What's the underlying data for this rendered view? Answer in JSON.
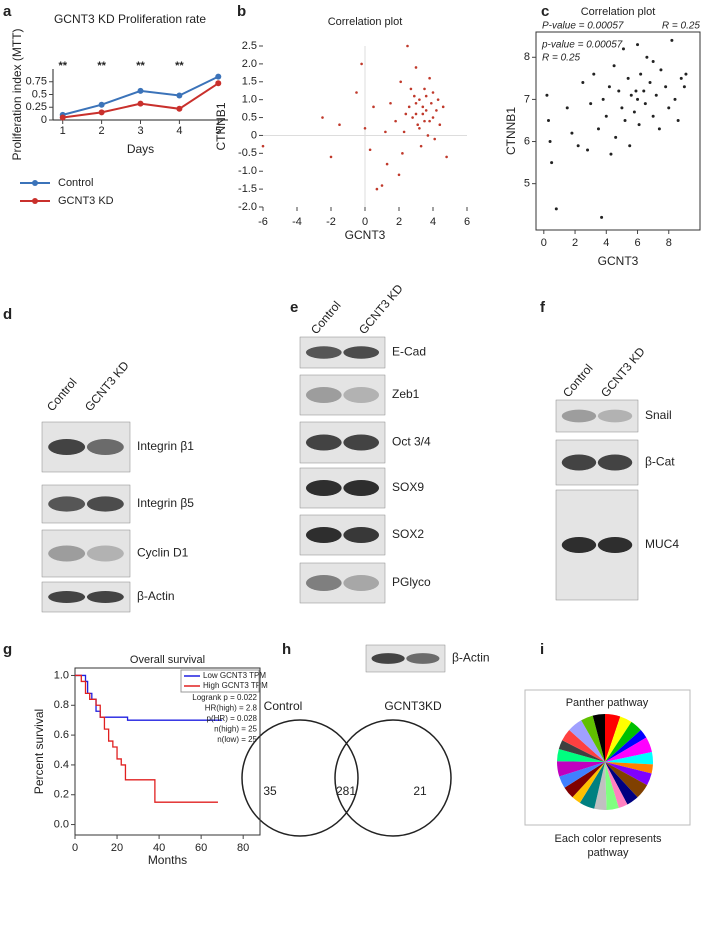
{
  "panel_letters": [
    "a",
    "b",
    "c",
    "d",
    "e",
    "f",
    "g",
    "h",
    "i"
  ],
  "chart_data": [
    {
      "type": "line",
      "title": "GCNT3 KD Proliferation rate",
      "x_label": "Days",
      "y_label": "Proliferation index (MTT)",
      "x": [
        1,
        2,
        3,
        4,
        5
      ],
      "xlim": [
        0.75,
        5.25
      ],
      "xticks": [
        1,
        2,
        3,
        4,
        5
      ],
      "ylim": [
        0,
        1
      ],
      "yticks": [
        0,
        0.25,
        0.5,
        0.75
      ],
      "significance": [
        "**",
        "**",
        "**",
        "**",
        null
      ],
      "series": [
        {
          "name": "Control",
          "color": "#3b73b9",
          "values": [
            0.1,
            0.3,
            0.57,
            0.48,
            0.85
          ]
        },
        {
          "name": "GCNT3 KD",
          "color": "#c9302c",
          "values": [
            0.05,
            0.15,
            0.32,
            0.22,
            0.72
          ]
        }
      ]
    },
    {
      "type": "scatter",
      "title": "Correlation plot",
      "x_label": "GCNT3",
      "y_label": "CTNNB1",
      "color": "#c0392b",
      "xlim": [
        -6,
        6
      ],
      "xticks": [
        -6,
        -4,
        -2,
        0,
        2,
        4,
        6
      ],
      "ylim": [
        -2,
        2.5
      ],
      "yticks": [
        {
          "value": -2,
          "label": "-2.0"
        },
        -1.5,
        {
          "value": -1,
          "label": "-1.0"
        },
        -0.5,
        0,
        0.5,
        {
          "value": 1,
          "label": "1.0"
        },
        1.5,
        {
          "value": 2,
          "label": "2.0"
        },
        2.5
      ],
      "x": [
        -6,
        -2.5,
        -2,
        -1.5,
        -0.5,
        -0.2,
        0,
        0.3,
        0.7,
        1,
        1.3,
        1.5,
        1.8,
        2,
        2.1,
        2.3,
        2.5,
        2.6,
        2.8,
        2.9,
        3,
        3,
        3.1,
        3.2,
        3.3,
        3.4,
        3.5,
        3.5,
        3.6,
        3.7,
        3.8,
        3.9,
        4,
        4,
        4.1,
        4.2,
        4.4,
        4.6,
        4.8,
        2.7,
        3.2,
        3.6,
        2.4,
        3.0,
        3.8,
        1.2,
        0.5,
        2.2,
        4.3,
        3.4
      ],
      "values": [
        -0.3,
        0.5,
        -0.6,
        0.3,
        1.2,
        2.0,
        0.2,
        -0.4,
        -1.5,
        -1.4,
        -0.8,
        0.9,
        0.4,
        -1.1,
        1.5,
        0.1,
        2.5,
        0.8,
        0.5,
        1.1,
        1.9,
        0.6,
        0.3,
        1.0,
        -0.3,
        0.8,
        0.4,
        1.3,
        0.7,
        0.0,
        1.6,
        0.9,
        0.5,
        1.2,
        -0.1,
        0.7,
        0.3,
        0.8,
        -0.6,
        1.3,
        0.2,
        1.1,
        0.6,
        0.9,
        0.4,
        0.1,
        0.8,
        -0.5,
        1.0,
        0.6
      ]
    },
    {
      "type": "scatter",
      "title": "Correlation plot",
      "x_label": "GCNT3",
      "y_label": "CTNNB1",
      "color": "#222222",
      "annotations": [
        "P-value = 0.00057",
        "R = 0.25",
        "p-value = 0.00057",
        "R = 0.25"
      ],
      "xlim": [
        -0.5,
        10
      ],
      "xticks": [
        0,
        2,
        4,
        6,
        8
      ],
      "ylim": [
        3.9,
        8.6
      ],
      "yticks": [
        5,
        6,
        7,
        8
      ],
      "x": [
        0.2,
        0.3,
        0.4,
        0.5,
        0.8,
        1.5,
        1.8,
        2.2,
        2.5,
        2.8,
        3,
        3.2,
        3.5,
        3.7,
        3.8,
        4,
        4.2,
        4.3,
        4.5,
        4.6,
        4.8,
        5,
        5.1,
        5.2,
        5.4,
        5.5,
        5.6,
        5.8,
        6,
        6,
        6.1,
        6.2,
        6.4,
        6.5,
        6.6,
        6.8,
        7,
        7,
        7.2,
        7.4,
        7.5,
        7.8,
        8,
        8.2,
        8.4,
        8.6,
        8.8,
        9,
        9.1,
        5.9
      ],
      "values": [
        7.1,
        6.5,
        6.0,
        5.5,
        4.4,
        6.8,
        6.2,
        5.9,
        7.4,
        5.8,
        6.9,
        7.6,
        6.3,
        4.2,
        7.0,
        6.6,
        7.3,
        5.7,
        7.8,
        6.1,
        7.2,
        6.8,
        8.2,
        6.5,
        7.5,
        5.9,
        7.1,
        6.7,
        8.3,
        7.0,
        6.4,
        7.6,
        7.2,
        6.9,
        8.0,
        7.4,
        6.6,
        7.9,
        7.1,
        6.3,
        7.7,
        7.3,
        6.8,
        8.4,
        7.0,
        6.5,
        7.5,
        7.3,
        7.6,
        7.2
      ]
    },
    {
      "type": "step",
      "title": "Overall survival",
      "x_label": "Months",
      "y_label": "Percent survival",
      "xlim": [
        0,
        88
      ],
      "xticks": [
        0,
        20,
        40,
        60,
        80
      ],
      "ylim": [
        -0.07,
        1.05
      ],
      "yticks": [
        {
          "value": 0,
          "label": "0.0"
        },
        0.2,
        0.4,
        0.6,
        0.8,
        {
          "value": 1,
          "label": "1.0"
        }
      ],
      "annotations": [
        "Logrank p = 0.022",
        "HR(high) = 2.8",
        "p(HR) = 0.028",
        "n(high) = 25",
        "n(low) = 25"
      ],
      "series": [
        {
          "name": "Low GCNT3 TPM",
          "color": "#1f1fe0",
          "x": [
            0,
            5,
            6,
            8,
            10,
            12,
            25,
            70
          ],
          "values": [
            1,
            0.96,
            0.88,
            0.84,
            0.76,
            0.72,
            0.7,
            0.7
          ]
        },
        {
          "name": "High GCNT3 TPM",
          "color": "#e02020",
          "x": [
            0,
            3,
            5,
            7,
            10,
            12,
            14,
            16,
            18,
            20,
            22,
            24,
            38,
            68
          ],
          "values": [
            1,
            0.96,
            0.88,
            0.84,
            0.8,
            0.72,
            0.64,
            0.56,
            0.52,
            0.44,
            0.4,
            0.3,
            0.15,
            0.15
          ]
        }
      ]
    },
    {
      "type": "pie",
      "title": "Panther pathway",
      "caption": "Each color represents pathway",
      "values": [
        5,
        4,
        4,
        3,
        5,
        4,
        3,
        4,
        5,
        4,
        3,
        4,
        4,
        5,
        3,
        4,
        4,
        5,
        4,
        3,
        4,
        5,
        4,
        4
      ],
      "colors": [
        "#ff0000",
        "#ffff00",
        "#00c000",
        "#0000ff",
        "#ff00ff",
        "#00ffff",
        "#ff8000",
        "#8000ff",
        "#804000",
        "#000080",
        "#ff80c0",
        "#80ff80",
        "#c0c0c0",
        "#008080",
        "#ffc000",
        "#800000",
        "#4080ff",
        "#c000c0",
        "#00ff80",
        "#404040",
        "#ff4040",
        "#a0a0ff",
        "#60c000",
        "#000000"
      ]
    }
  ],
  "blots": {
    "d": {
      "columns": [
        "Control",
        "GCNT3 KD"
      ],
      "bands": [
        "Integrin β1",
        "Integrin β5",
        "Cyclin D1",
        "β-Actin"
      ]
    },
    "e": {
      "columns": [
        "Control",
        "GCNT3 KD"
      ],
      "bands": [
        "E-Cad",
        "Zeb1",
        "Oct 3/4",
        "SOX9",
        "SOX2",
        "PGlyco",
        "β-Actin"
      ]
    },
    "f": {
      "columns": [
        "Control",
        "GCNT3 KD"
      ],
      "bands": [
        "Snail",
        "β-Cat",
        "MUC4"
      ]
    }
  },
  "venn": {
    "sets": [
      "Control",
      "GCNT3KD"
    ],
    "counts": [
      "35",
      "281",
      "21"
    ]
  }
}
